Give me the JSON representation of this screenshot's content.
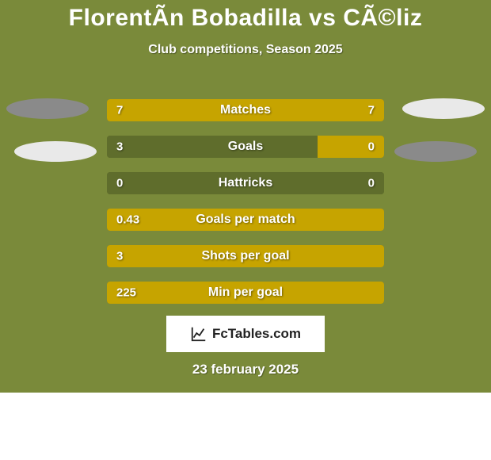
{
  "colors": {
    "card_bg": "#7a8a3a",
    "page_bg": "#ffffff",
    "title_color": "#ffffff",
    "subtitle_color": "#ffffff",
    "label_color": "#ffffff",
    "value_color": "#ffffff",
    "bar_track": "#5f6d2c",
    "bar_accent": "#c6a400",
    "ellipse_light": "#e9e9e9",
    "ellipse_dark": "#8a8a8a",
    "logo_bg": "#ffffff",
    "logo_text": "#222222",
    "date_color": "#ffffff"
  },
  "title": "FlorentÃ­n Bobadilla vs CÃ©liz",
  "subtitle": "Club competitions, Season 2025",
  "bars": [
    {
      "label": "Matches",
      "left_text": "7",
      "right_text": "7",
      "left_pct": 50,
      "right_pct": 50,
      "left_color_key": "bar_accent",
      "right_color_key": "bar_accent"
    },
    {
      "label": "Goals",
      "left_text": "3",
      "right_text": "0",
      "left_pct": 76,
      "right_pct": 24,
      "left_color_key": "bar_track",
      "right_color_key": "bar_accent"
    },
    {
      "label": "Hattricks",
      "left_text": "0",
      "right_text": "0",
      "left_pct": 100,
      "right_pct": 0,
      "left_color_key": "bar_track",
      "right_color_key": "bar_accent"
    },
    {
      "label": "Goals per match",
      "left_text": "0.43",
      "right_text": "",
      "left_pct": 100,
      "right_pct": 0,
      "left_color_key": "bar_accent",
      "right_color_key": "bar_accent"
    },
    {
      "label": "Shots per goal",
      "left_text": "3",
      "right_text": "",
      "left_pct": 100,
      "right_pct": 0,
      "left_color_key": "bar_accent",
      "right_color_key": "bar_accent"
    },
    {
      "label": "Min per goal",
      "left_text": "225",
      "right_text": "",
      "left_pct": 100,
      "right_pct": 0,
      "left_color_key": "bar_accent",
      "right_color_key": "bar_accent"
    }
  ],
  "logo_text": "FcTables.com",
  "date": "23 february 2025"
}
